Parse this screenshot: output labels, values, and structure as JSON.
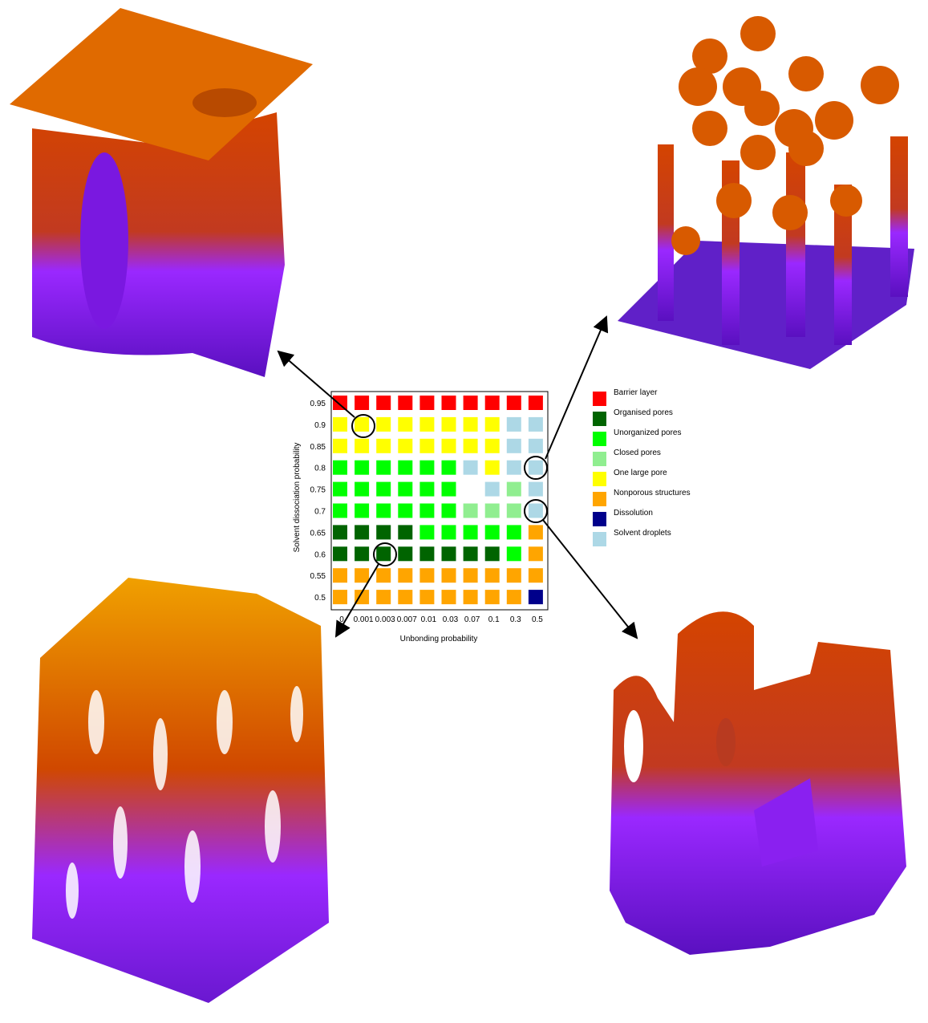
{
  "chart_data": {
    "type": "grid",
    "x_label": "Unbonding probability",
    "y_label": "Solvent dissociation probability",
    "categories": [
      "0",
      "0.001",
      "0.003",
      "0.007",
      "0.01",
      "0.03",
      "0.07",
      "0.1",
      "0.3",
      "0.5"
    ],
    "y_categories": [
      "0.5",
      "0.55",
      "0.6",
      "0.65",
      "0.7",
      "0.75",
      "0.8",
      "0.85",
      "0.9",
      "0.95"
    ],
    "legend": [
      {
        "name": "Barrier layer",
        "color": "#ff0000"
      },
      {
        "name": "Organised pores",
        "color": "#006400"
      },
      {
        "name": "Unorganized pores",
        "color": "#00ff00"
      },
      {
        "name": "Closed pores",
        "color": "#90ee90"
      },
      {
        "name": "One large pore",
        "color": "#ffff00"
      },
      {
        "name": "Nonporous structures",
        "color": "#ffa500"
      },
      {
        "name": "Dissolution",
        "color": "#00008b"
      },
      {
        "name": "Solvent droplets",
        "color": "#add8e6"
      }
    ],
    "cells": [
      [
        5,
        5,
        5,
        5,
        5,
        5,
        5,
        5,
        5,
        6
      ],
      [
        5,
        5,
        5,
        5,
        5,
        5,
        5,
        5,
        5,
        5
      ],
      [
        1,
        1,
        1,
        1,
        1,
        1,
        1,
        1,
        2,
        5
      ],
      [
        1,
        1,
        1,
        1,
        2,
        2,
        2,
        2,
        2,
        5
      ],
      [
        2,
        2,
        2,
        2,
        2,
        2,
        3,
        3,
        3,
        7
      ],
      [
        2,
        2,
        2,
        2,
        2,
        2,
        null,
        7,
        3,
        7
      ],
      [
        2,
        2,
        2,
        2,
        2,
        2,
        7,
        4,
        7,
        7
      ],
      [
        4,
        4,
        4,
        4,
        4,
        4,
        4,
        4,
        7,
        7
      ],
      [
        4,
        4,
        4,
        4,
        4,
        4,
        4,
        4,
        7,
        7
      ],
      [
        0,
        0,
        0,
        0,
        0,
        0,
        0,
        0,
        0,
        0
      ]
    ]
  }
}
